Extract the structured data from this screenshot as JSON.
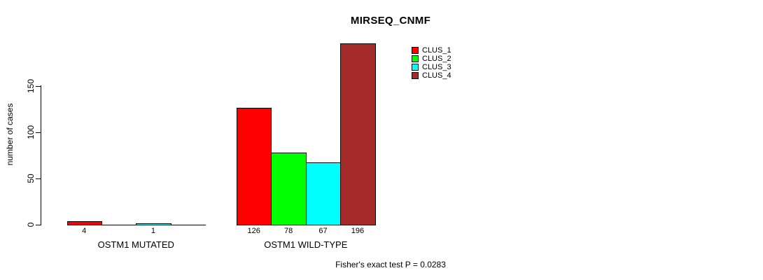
{
  "chart_data": {
    "type": "bar",
    "title": "MIRSEQ_CNMF",
    "ylabel": "number of cases",
    "xlabel": "",
    "yticks": [
      0,
      50,
      100,
      150
    ],
    "ylim": [
      0,
      200
    ],
    "grid": false,
    "categories": [
      "OSTM1 MUTATED",
      "OSTM1 WILD-TYPE"
    ],
    "series": [
      {
        "name": "CLUS_1",
        "color": "#ff0000",
        "values": [
          4,
          126
        ]
      },
      {
        "name": "CLUS_2",
        "color": "#00ff00",
        "values": [
          0,
          78
        ]
      },
      {
        "name": "CLUS_3",
        "color": "#00ffff",
        "values": [
          1,
          67
        ]
      },
      {
        "name": "CLUS_4",
        "color": "#a52a2a",
        "values": [
          0,
          196
        ]
      }
    ],
    "value_labels_shown_for_positive_only": true,
    "legend": {
      "position": "top-right",
      "entries": [
        "CLUS_1",
        "CLUS_2",
        "CLUS_3",
        "CLUS_4"
      ]
    },
    "annotation": "Fisher's exact test P = 0.0283",
    "axis_color": "#000000",
    "background_color": "#ffffff"
  }
}
